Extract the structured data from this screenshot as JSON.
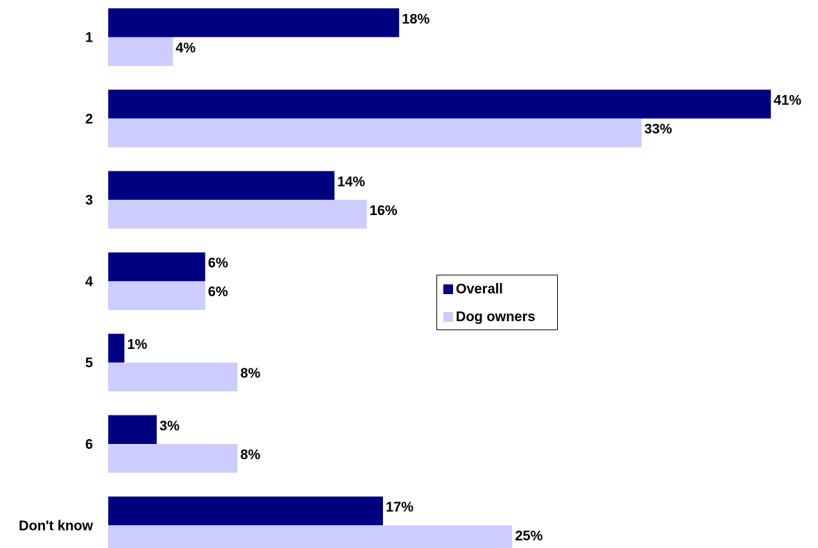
{
  "chart_data": {
    "type": "bar",
    "orientation": "horizontal",
    "categories": [
      "1",
      "2",
      "3",
      "4",
      "5",
      "6",
      "Don't know"
    ],
    "series": [
      {
        "name": "Overall",
        "color": "#000080",
        "values": [
          18,
          41,
          14,
          6,
          1,
          3,
          17
        ],
        "labels": [
          "18%",
          "41%",
          "14%",
          "6%",
          "1%",
          "3%",
          "17%"
        ]
      },
      {
        "name": "Dog owners",
        "color": "#ccccff",
        "values": [
          4,
          33,
          16,
          6,
          8,
          8,
          25
        ],
        "labels": [
          "4%",
          "33%",
          "16%",
          "6%",
          "8%",
          "8%",
          "25%"
        ]
      }
    ],
    "value_format": "percent",
    "xlim": [
      0,
      41
    ],
    "grid": false,
    "legend_position": "center-right"
  }
}
